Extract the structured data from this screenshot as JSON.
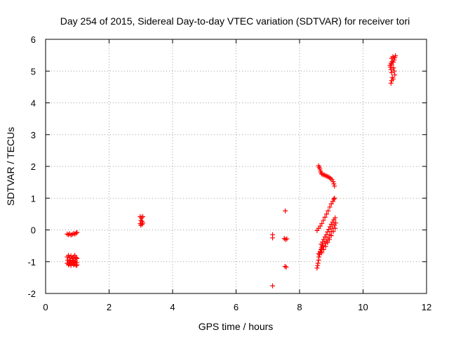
{
  "chart_data": {
    "type": "scatter",
    "title": "Day 254 of 2015, Sidereal Day-to-day VTEC variation (SDTVAR) for receiver tori",
    "xlabel": "GPS time / hours",
    "ylabel": "SDTVAR / TECUs",
    "xlim": [
      0,
      12
    ],
    "ylim": [
      -2,
      6
    ],
    "xticks": [
      0,
      2,
      4,
      6,
      8,
      10,
      12
    ],
    "yticks": [
      -2,
      -1,
      0,
      1,
      2,
      3,
      4,
      5,
      6
    ],
    "grid": true,
    "marker": "+",
    "color": "#ff0000",
    "points": [
      [
        0.68,
        -0.13
      ],
      [
        0.72,
        -0.15
      ],
      [
        0.76,
        -0.12
      ],
      [
        0.8,
        -0.16
      ],
      [
        0.84,
        -0.14
      ],
      [
        0.88,
        -0.11
      ],
      [
        0.92,
        -0.13
      ],
      [
        0.96,
        -0.1
      ],
      [
        0.99,
        -0.08
      ],
      [
        0.68,
        -0.85
      ],
      [
        0.72,
        -0.8
      ],
      [
        0.76,
        -0.88
      ],
      [
        0.8,
        -0.82
      ],
      [
        0.84,
        -0.9
      ],
      [
        0.88,
        -0.85
      ],
      [
        0.92,
        -0.8
      ],
      [
        0.96,
        -0.87
      ],
      [
        0.99,
        -0.9
      ],
      [
        0.7,
        -0.95
      ],
      [
        0.74,
        -1.0
      ],
      [
        0.78,
        -0.97
      ],
      [
        0.82,
        -1.02
      ],
      [
        0.86,
        -0.95
      ],
      [
        0.9,
        -1.0
      ],
      [
        0.94,
        -0.98
      ],
      [
        0.98,
        -1.03
      ],
      [
        0.68,
        -1.05
      ],
      [
        0.72,
        -1.1
      ],
      [
        0.76,
        -1.07
      ],
      [
        0.8,
        -1.12
      ],
      [
        0.84,
        -1.05
      ],
      [
        0.88,
        -1.1
      ],
      [
        0.92,
        -1.08
      ],
      [
        0.96,
        -1.12
      ],
      [
        0.99,
        -1.1
      ],
      [
        2.98,
        0.42
      ],
      [
        3.02,
        0.38
      ],
      [
        3.06,
        0.42
      ],
      [
        3.0,
        0.3
      ],
      [
        3.04,
        0.27
      ],
      [
        2.98,
        0.2
      ],
      [
        3.06,
        0.22
      ],
      [
        3.0,
        0.15
      ],
      [
        3.04,
        0.18
      ],
      [
        7.15,
        -0.15
      ],
      [
        7.15,
        -0.25
      ],
      [
        7.15,
        -1.76
      ],
      [
        7.55,
        0.6
      ],
      [
        7.52,
        -0.27
      ],
      [
        7.56,
        -0.3
      ],
      [
        7.6,
        -0.28
      ],
      [
        7.54,
        -1.15
      ],
      [
        7.58,
        -1.17
      ],
      [
        8.6,
        2.02
      ],
      [
        8.62,
        1.97
      ],
      [
        8.64,
        1.92
      ],
      [
        8.66,
        1.85
      ],
      [
        8.68,
        1.8
      ],
      [
        8.7,
        1.76
      ],
      [
        8.74,
        1.74
      ],
      [
        8.78,
        1.73
      ],
      [
        8.82,
        1.71
      ],
      [
        8.86,
        1.69
      ],
      [
        8.9,
        1.67
      ],
      [
        8.94,
        1.65
      ],
      [
        8.98,
        1.62
      ],
      [
        9.02,
        1.58
      ],
      [
        9.06,
        1.52
      ],
      [
        9.08,
        1.45
      ],
      [
        9.1,
        1.38
      ],
      [
        8.55,
        -0.02
      ],
      [
        8.6,
        0.05
      ],
      [
        8.65,
        0.12
      ],
      [
        8.7,
        0.2
      ],
      [
        8.75,
        0.3
      ],
      [
        8.8,
        0.4
      ],
      [
        8.85,
        0.5
      ],
      [
        8.9,
        0.6
      ],
      [
        8.95,
        0.72
      ],
      [
        9.0,
        0.82
      ],
      [
        9.05,
        0.9
      ],
      [
        9.08,
        0.97
      ],
      [
        9.1,
        1.0
      ],
      [
        8.55,
        -1.2
      ],
      [
        8.57,
        -1.12
      ],
      [
        8.58,
        -1.05
      ],
      [
        8.6,
        -0.95
      ],
      [
        8.61,
        -0.85
      ],
      [
        8.63,
        -0.78
      ],
      [
        8.65,
        -0.7
      ],
      [
        8.67,
        -0.62
      ],
      [
        8.7,
        -0.55
      ],
      [
        8.72,
        -0.5
      ],
      [
        8.68,
        -0.45
      ],
      [
        8.72,
        -0.38
      ],
      [
        8.76,
        -0.3
      ],
      [
        8.8,
        -0.22
      ],
      [
        8.84,
        -0.15
      ],
      [
        8.88,
        -0.06
      ],
      [
        8.92,
        0.02
      ],
      [
        8.96,
        0.1
      ],
      [
        9.0,
        0.18
      ],
      [
        9.04,
        0.25
      ],
      [
        9.08,
        0.32
      ],
      [
        9.12,
        0.38
      ],
      [
        8.6,
        -0.75
      ],
      [
        8.65,
        -0.68
      ],
      [
        8.7,
        -0.6
      ],
      [
        8.75,
        -0.52
      ],
      [
        8.8,
        -0.42
      ],
      [
        8.85,
        -0.35
      ],
      [
        8.9,
        -0.25
      ],
      [
        8.95,
        -0.15
      ],
      [
        9.0,
        -0.05
      ],
      [
        9.05,
        0.05
      ],
      [
        9.1,
        0.15
      ],
      [
        9.14,
        0.22
      ],
      [
        8.7,
        -0.72
      ],
      [
        8.76,
        -0.62
      ],
      [
        8.82,
        -0.52
      ],
      [
        8.88,
        -0.4
      ],
      [
        8.94,
        -0.3
      ],
      [
        9.0,
        -0.18
      ],
      [
        9.06,
        -0.05
      ],
      [
        9.12,
        0.05
      ],
      [
        10.88,
        4.62
      ],
      [
        10.9,
        4.7
      ],
      [
        10.92,
        4.8
      ],
      [
        10.9,
        4.95
      ],
      [
        10.88,
        5.05
      ],
      [
        10.86,
        5.12
      ],
      [
        10.9,
        5.2
      ],
      [
        10.95,
        5.28
      ],
      [
        10.98,
        5.35
      ],
      [
        11.0,
        5.42
      ],
      [
        11.02,
        5.48
      ],
      [
        10.85,
        5.18
      ],
      [
        10.88,
        5.25
      ],
      [
        10.92,
        5.3
      ],
      [
        10.96,
        5.1
      ],
      [
        10.98,
        5.0
      ],
      [
        11.0,
        4.88
      ],
      [
        10.95,
        4.75
      ],
      [
        10.9,
        5.4
      ],
      [
        10.94,
        5.45
      ]
    ]
  }
}
